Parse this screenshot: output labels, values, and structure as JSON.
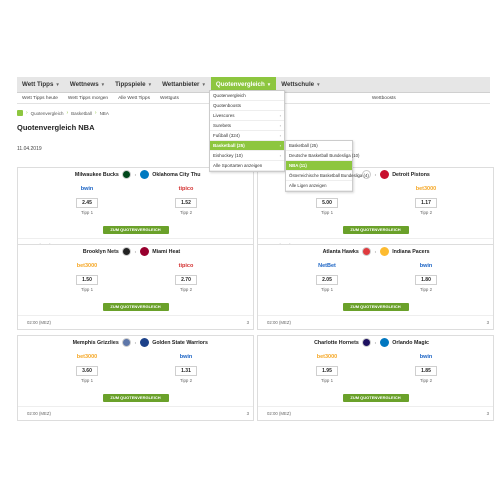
{
  "nav": {
    "items": [
      {
        "label": "Wett Tipps",
        "active": false
      },
      {
        "label": "Wettnews",
        "active": false
      },
      {
        "label": "Tippspiele",
        "active": false
      },
      {
        "label": "Wettanbieter",
        "active": false
      },
      {
        "label": "Quotenvergleich",
        "active": true
      },
      {
        "label": "Wettschule",
        "active": false
      }
    ]
  },
  "subnav": {
    "items": [
      "Wett Tipps heute",
      "Wett Tipps morgen",
      "Alle Wett Tipps",
      "Wettguts",
      "Wettboosts"
    ]
  },
  "breadcrumb": {
    "items": [
      "Quotenvergleich",
      "Basketball",
      "NBA"
    ]
  },
  "page": {
    "title": "Quotenvergleich NBA",
    "date": "11.04.2019"
  },
  "dropdown": {
    "items": [
      {
        "label": "Quotenvergleich",
        "arrow": false,
        "active": false
      },
      {
        "label": "Quotenboosts",
        "arrow": false,
        "active": false
      },
      {
        "label": "Livescores",
        "arrow": true,
        "active": false
      },
      {
        "label": "Surebets",
        "arrow": true,
        "active": false
      },
      {
        "label": "Fußball (324)",
        "arrow": true,
        "active": false
      },
      {
        "label": "Basketball (25)",
        "arrow": true,
        "active": true
      },
      {
        "label": "Eishockey (10)",
        "arrow": true,
        "active": false
      },
      {
        "label": "Alle Sportarten anzeigen",
        "arrow": false,
        "active": false
      }
    ],
    "submenu": [
      {
        "label": "Basketball (25)",
        "active": false
      },
      {
        "label": "Deutsche Basketball Bundesliga (10)",
        "active": false
      },
      {
        "label": "NBA (11)",
        "active": true
      },
      {
        "label": "Österreichische Basketball Bundesliga (4)",
        "active": false
      },
      {
        "label": "Alle Ligen anzeigen",
        "active": false
      }
    ]
  },
  "colors": {
    "accent": "#8dc63f",
    "button": "#6aa12a"
  },
  "matches": [
    {
      "home": "Milwaukee Bucks",
      "away": "Oklahoma City Thu",
      "home_logo": "#00471b",
      "away_logo": "#007ac1",
      "bk1": "bwin",
      "bk1_color": "#1a63c4",
      "bk2": "tipico",
      "bk2_color": "#d32f2f",
      "odd1": "2.45",
      "odd2": "1.52",
      "tipp1": "Tipp 1",
      "tipp2": "Tipp 2",
      "button": "ZUM QUOTENVERGLEICH",
      "time": "02:00 (MEZ)",
      "count": "3"
    },
    {
      "home": "",
      "away": "Detroit Pistons",
      "home_logo": "#ffffff",
      "away_logo": "#c8102e",
      "bk1": "",
      "bk1_color": "#1a63c4",
      "bk2": "bet3000",
      "bk2_color": "#f5a623",
      "odd1": "5.00",
      "odd2": "1.17",
      "tipp1": "Tipp 1",
      "tipp2": "Tipp 2",
      "button": "ZUM QUOTENVERGLEICH",
      "time": "02:00 (MEZ)",
      "count": "3"
    },
    {
      "home": "Brooklyn Nets",
      "away": "Miami Heat",
      "home_logo": "#222222",
      "away_logo": "#98002e",
      "bk1": "bet3000",
      "bk1_color": "#f5a623",
      "bk2": "tipico",
      "bk2_color": "#d32f2f",
      "odd1": "1.50",
      "odd2": "2.70",
      "tipp1": "Tipp 1",
      "tipp2": "Tipp 2",
      "button": "ZUM QUOTENVERGLEICH",
      "time": "02:00 (MEZ)",
      "count": "3"
    },
    {
      "home": "Atlanta Hawks",
      "away": "Indiana Pacers",
      "home_logo": "#e03a3e",
      "away_logo": "#fdbb30",
      "bk1": "NetBet",
      "bk1_color": "#1a63c4",
      "bk2": "bwin",
      "bk2_color": "#1a63c4",
      "odd1": "2.05",
      "odd2": "1.80",
      "tipp1": "Tipp 1",
      "tipp2": "Tipp 2",
      "button": "ZUM QUOTENVERGLEICH",
      "time": "02:00 (MEZ)",
      "count": "3"
    },
    {
      "home": "Memphis Grizzlies",
      "away": "Golden State Warriors",
      "home_logo": "#5d76a9",
      "away_logo": "#1d428a",
      "bk1": "bet3000",
      "bk1_color": "#f5a623",
      "bk2": "bwin",
      "bk2_color": "#1a63c4",
      "odd1": "3.60",
      "odd2": "1.31",
      "tipp1": "Tipp 1",
      "tipp2": "Tipp 2",
      "button": "ZUM QUOTENVERGLEICH",
      "time": "02:00 (MEZ)",
      "count": "3"
    },
    {
      "home": "Charlotte Hornets",
      "away": "Orlando Magic",
      "home_logo": "#1d1160",
      "away_logo": "#0077c0",
      "bk1": "bet3000",
      "bk1_color": "#f5a623",
      "bk2": "bwin",
      "bk2_color": "#1a63c4",
      "odd1": "1.95",
      "odd2": "1.85",
      "tipp1": "Tipp 1",
      "tipp2": "Tipp 2",
      "button": "ZUM QUOTENVERGLEICH",
      "time": "02:00 (MEZ)",
      "count": "3"
    }
  ]
}
